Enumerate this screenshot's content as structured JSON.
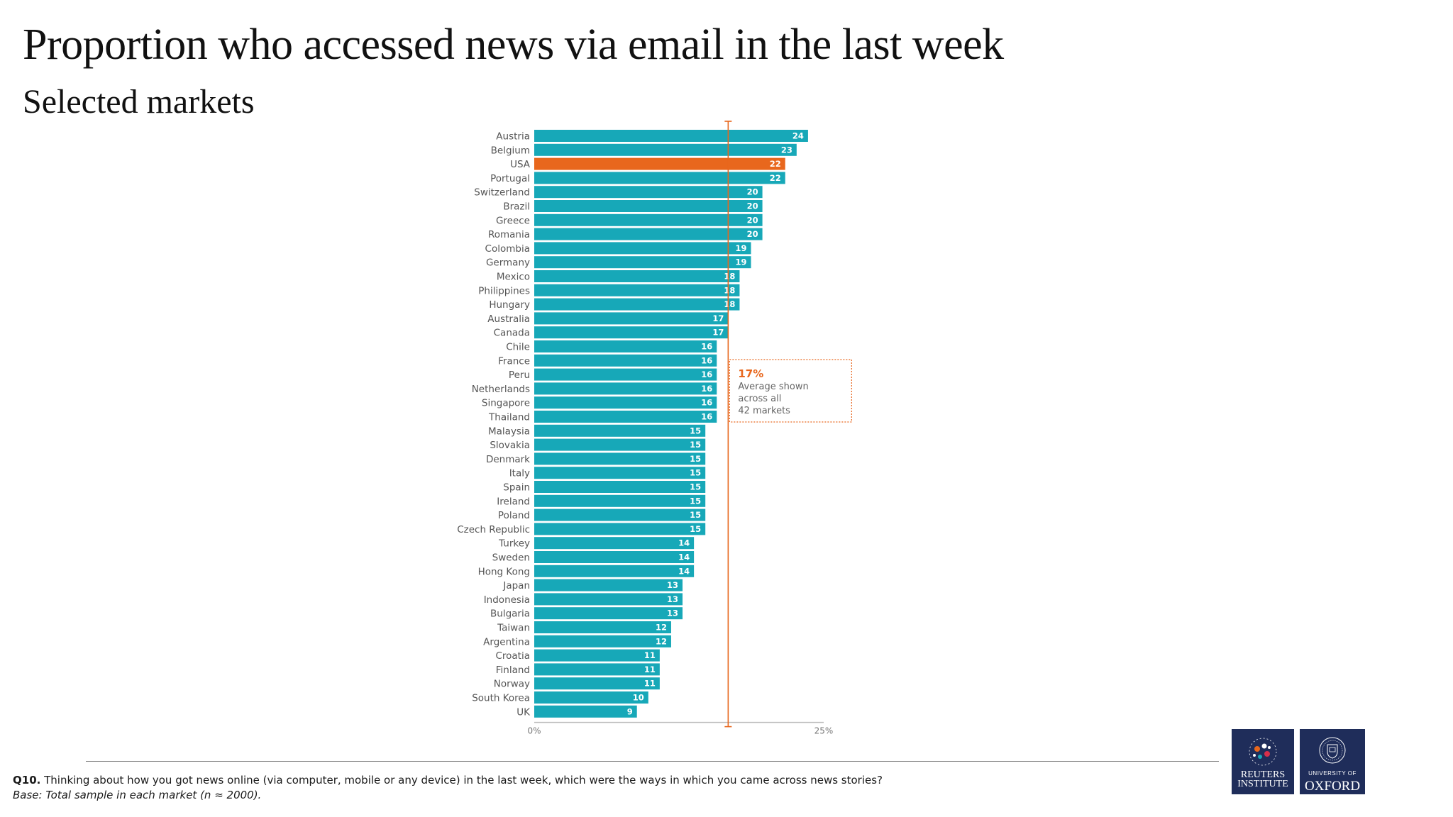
{
  "page": {
    "title": "Proportion who accessed news via email in the last week",
    "subtitle": "Selected markets"
  },
  "footnote": {
    "q_label": "Q10.",
    "question": "Thinking about how you got news online (via computer, mobile or any device) in the last week, which were the ways in which you came across news stories?",
    "base": "Base: Total sample in each market (n ≈ 2000)."
  },
  "logos": {
    "reuters_line1": "REUTERS",
    "reuters_line2": "INSTITUTE",
    "oxford_line1": "UNIVERSITY OF",
    "oxford_line2": "OXFORD"
  },
  "colors": {
    "bar": "#17a8b8",
    "highlight": "#e8671d",
    "average_line": "#e8671d",
    "background": "#ffffff"
  },
  "chart_data": {
    "type": "bar",
    "orientation": "horizontal",
    "categories": [
      "Austria",
      "Belgium",
      "USA",
      "Portugal",
      "Switzerland",
      "Brazil",
      "Greece",
      "Romania",
      "Colombia",
      "Germany",
      "Mexico",
      "Philippines",
      "Hungary",
      "Australia",
      "Canada",
      "Chile",
      "France",
      "Peru",
      "Netherlands",
      "Singapore",
      "Thailand",
      "Malaysia",
      "Slovakia",
      "Denmark",
      "Italy",
      "Spain",
      "Ireland",
      "Poland",
      "Czech Republic",
      "Turkey",
      "Sweden",
      "Hong Kong",
      "Japan",
      "Indonesia",
      "Bulgaria",
      "Taiwan",
      "Argentina",
      "Croatia",
      "Finland",
      "Norway",
      "South Korea",
      "UK"
    ],
    "values": [
      24,
      23,
      22,
      22,
      20,
      20,
      20,
      20,
      19,
      19,
      18,
      18,
      18,
      17,
      17,
      16,
      16,
      16,
      16,
      16,
      16,
      15,
      15,
      15,
      15,
      15,
      15,
      15,
      15,
      14,
      14,
      14,
      13,
      13,
      13,
      12,
      12,
      11,
      11,
      11,
      10,
      9
    ],
    "highlight": "USA",
    "xlim": [
      0,
      25
    ],
    "x_tick_labels": [
      "0%",
      "25%"
    ],
    "average": {
      "value": 17,
      "label_value": "17%",
      "label_lines": [
        "Average shown",
        "across all",
        "42 markets"
      ]
    },
    "grid": false
  }
}
